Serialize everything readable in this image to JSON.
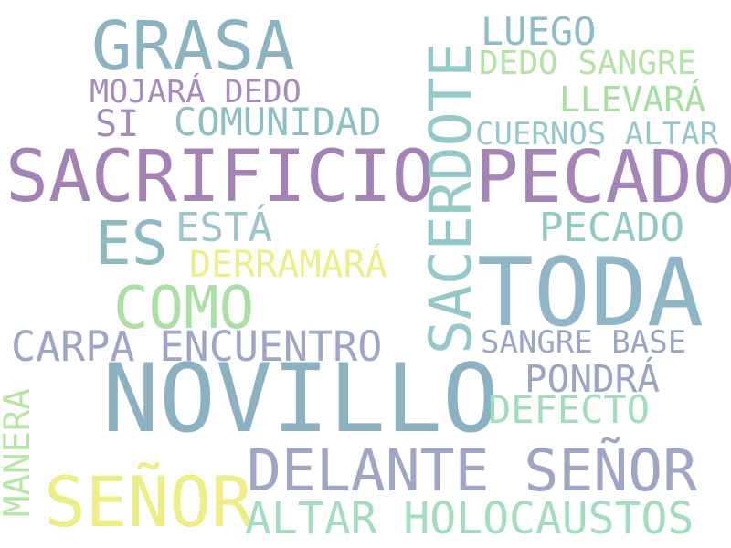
{
  "words": [
    {
      "text": "GRASA",
      "color": "#8db3c1"
    },
    {
      "text": "LUEGO",
      "color": "#8fbcc8"
    },
    {
      "text": "DEDO SANGRE",
      "color": "#b4e3a6"
    },
    {
      "text": "MOJARÁ DEDO",
      "color": "#a88bbb"
    },
    {
      "text": "LLEVARÁ",
      "color": "#a6df9f"
    },
    {
      "text": "SI",
      "color": "#a48ab8"
    },
    {
      "text": "COMUNIDAD",
      "color": "#8fbfc4"
    },
    {
      "text": "CUERNOS ALTAR",
      "color": "#96c7cc"
    },
    {
      "text": "SACRIFICIO",
      "color": "#a283b3"
    },
    {
      "text": "PECADO",
      "color": "#a386b6"
    },
    {
      "text": "SACERDOTE",
      "color": "#95c9c9"
    },
    {
      "text": "ES",
      "color": "#8cb9c2"
    },
    {
      "text": "ESTÁ",
      "color": "#9ec4cc"
    },
    {
      "text": "PECADO",
      "color": "#91c9c4"
    },
    {
      "text": "DERRAMARÁ",
      "color": "#ecee8a"
    },
    {
      "text": "TODA",
      "color": "#8fb6c6"
    },
    {
      "text": "COMO",
      "color": "#acdfa6"
    },
    {
      "text": "CARPA ENCUENTRO",
      "color": "#9ea6c4"
    },
    {
      "text": "SANGRE BASE",
      "color": "#9aa7c4"
    },
    {
      "text": "PONDRÁ",
      "color": "#99a5c2"
    },
    {
      "text": "NOVILLO",
      "color": "#8cb1c1"
    },
    {
      "text": "DEFECTO",
      "color": "#a1dcbd"
    },
    {
      "text": "MANERA",
      "color": "#b5e6a8"
    },
    {
      "text": "DELANTE SEÑOR",
      "color": "#9ea6c4"
    },
    {
      "text": "SEÑOR",
      "color": "#eeee88"
    },
    {
      "text": "ALTAR HOLOCAUSTOS",
      "color": "#a4dcc0"
    }
  ]
}
